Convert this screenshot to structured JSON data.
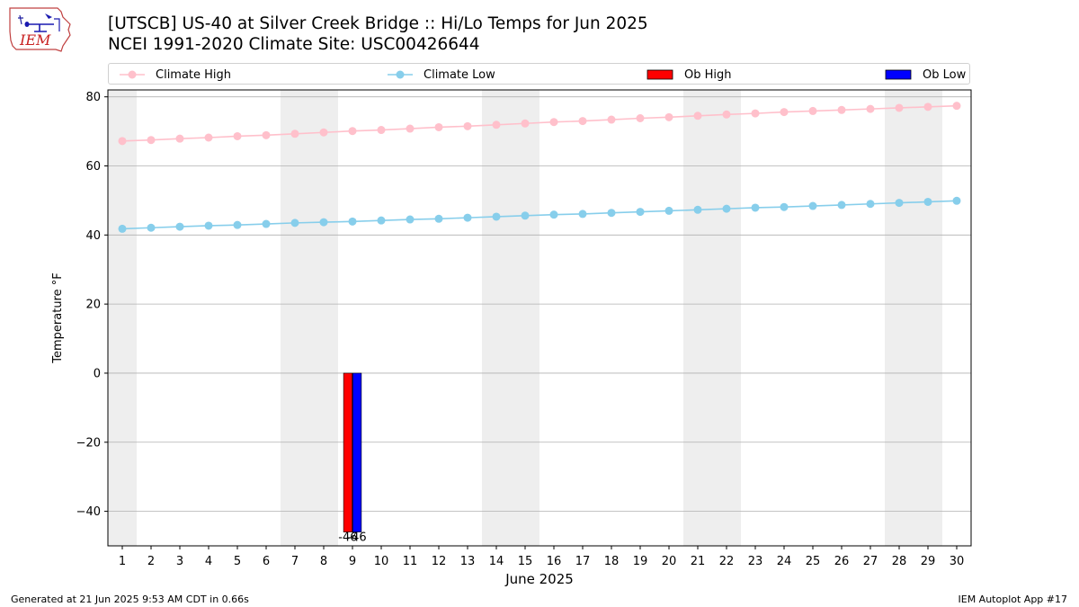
{
  "header": {
    "title_line1": "[UTSCB] US-40 at Silver Creek Bridge :: Hi/Lo Temps for Jun 2025",
    "title_line2": "NCEI 1991-2020 Climate Site: USC00426644",
    "logo_text": "IEM"
  },
  "footer": {
    "generated": "Generated at 21 Jun 2025 9:53 AM CDT in 0.66s",
    "app": "IEM Autoplot App #17"
  },
  "colors": {
    "climate_high": "#ffc0cb",
    "climate_low": "#87ceeb",
    "ob_high": "#ff0000",
    "ob_low": "#0000ff",
    "weekend_band": "#eeeeee",
    "grid": "#b0b0b0"
  },
  "chart_data": {
    "type": "bar",
    "xlabel": "June 2025",
    "ylabel": "Temperature °F",
    "xlim": [
      0.5,
      30.5
    ],
    "ylim": [
      -50,
      82
    ],
    "yticks": [
      -40,
      -20,
      0,
      20,
      40,
      60,
      80
    ],
    "xticks": [
      1,
      2,
      3,
      4,
      5,
      6,
      7,
      8,
      9,
      10,
      11,
      12,
      13,
      14,
      15,
      16,
      17,
      18,
      19,
      20,
      21,
      22,
      23,
      24,
      25,
      26,
      27,
      28,
      29,
      30
    ],
    "grid": "y",
    "legend_position": "top",
    "weekend_bands": [
      [
        0.5,
        1.5
      ],
      [
        6.5,
        8.5
      ],
      [
        13.5,
        15.5
      ],
      [
        20.5,
        22.5
      ],
      [
        27.5,
        29.5
      ]
    ],
    "series": [
      {
        "name": "Climate High",
        "kind": "line",
        "x": [
          1,
          2,
          3,
          4,
          5,
          6,
          7,
          8,
          9,
          10,
          11,
          12,
          13,
          14,
          15,
          16,
          17,
          18,
          19,
          20,
          21,
          22,
          23,
          24,
          25,
          26,
          27,
          28,
          29,
          30
        ],
        "values": [
          67.2,
          67.5,
          67.9,
          68.2,
          68.6,
          68.9,
          69.3,
          69.7,
          70.1,
          70.4,
          70.8,
          71.2,
          71.5,
          71.9,
          72.3,
          72.7,
          73.0,
          73.4,
          73.8,
          74.1,
          74.5,
          74.9,
          75.2,
          75.6,
          75.9,
          76.2,
          76.5,
          76.8,
          77.1,
          77.4
        ]
      },
      {
        "name": "Climate Low",
        "kind": "line",
        "x": [
          1,
          2,
          3,
          4,
          5,
          6,
          7,
          8,
          9,
          10,
          11,
          12,
          13,
          14,
          15,
          16,
          17,
          18,
          19,
          20,
          21,
          22,
          23,
          24,
          25,
          26,
          27,
          28,
          29,
          30
        ],
        "values": [
          41.8,
          42.1,
          42.4,
          42.7,
          42.9,
          43.2,
          43.5,
          43.7,
          43.9,
          44.2,
          44.5,
          44.7,
          45.0,
          45.3,
          45.6,
          45.9,
          46.1,
          46.4,
          46.7,
          47.0,
          47.3,
          47.6,
          47.9,
          48.1,
          48.4,
          48.7,
          49.0,
          49.3,
          49.6,
          49.9
        ]
      },
      {
        "name": "Ob High",
        "kind": "bar",
        "x": [
          9
        ],
        "values": [
          -46
        ],
        "labels": [
          "-46"
        ]
      },
      {
        "name": "Ob Low",
        "kind": "bar",
        "x": [
          9
        ],
        "values": [
          -46
        ],
        "labels": [
          "-46"
        ]
      }
    ]
  }
}
